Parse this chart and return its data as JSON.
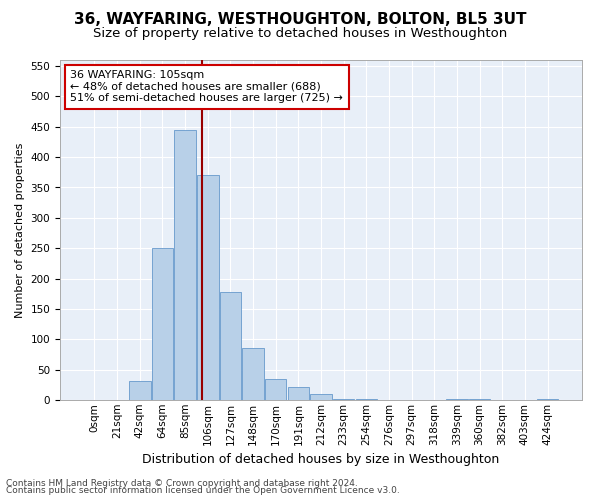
{
  "title": "36, WAYFARING, WESTHOUGHTON, BOLTON, BL5 3UT",
  "subtitle": "Size of property relative to detached houses in Westhoughton",
  "xlabel": "Distribution of detached houses by size in Westhoughton",
  "ylabel": "Number of detached properties",
  "footnote1": "Contains HM Land Registry data © Crown copyright and database right 2024.",
  "footnote2": "Contains public sector information licensed under the Open Government Licence v3.0.",
  "bin_labels": [
    "0sqm",
    "21sqm",
    "42sqm",
    "64sqm",
    "85sqm",
    "106sqm",
    "127sqm",
    "148sqm",
    "170sqm",
    "191sqm",
    "212sqm",
    "233sqm",
    "254sqm",
    "276sqm",
    "297sqm",
    "318sqm",
    "339sqm",
    "360sqm",
    "382sqm",
    "403sqm",
    "424sqm"
  ],
  "bar_values": [
    0,
    0,
    32,
    250,
    445,
    370,
    178,
    85,
    35,
    22,
    10,
    2,
    1,
    0,
    0,
    0,
    1,
    1,
    0,
    0,
    1
  ],
  "bar_color": "#b8d0e8",
  "bar_edge_color": "#6699cc",
  "bg_color": "#e8eff8",
  "grid_color": "#ffffff",
  "vline_x": 4.76,
  "vline_color": "#990000",
  "annotation_line1": "36 WAYFARING: 105sqm",
  "annotation_line2": "← 48% of detached houses are smaller (688)",
  "annotation_line3": "51% of semi-detached houses are larger (725) →",
  "annotation_box_color": "#ffffff",
  "annotation_border_color": "#cc0000",
  "ylim": [
    0,
    560
  ],
  "yticks": [
    0,
    50,
    100,
    150,
    200,
    250,
    300,
    350,
    400,
    450,
    500,
    550
  ],
  "title_fontsize": 11,
  "subtitle_fontsize": 9.5,
  "xlabel_fontsize": 9,
  "ylabel_fontsize": 8,
  "tick_fontsize": 7.5,
  "annotation_fontsize": 8,
  "footnote_fontsize": 6.5
}
